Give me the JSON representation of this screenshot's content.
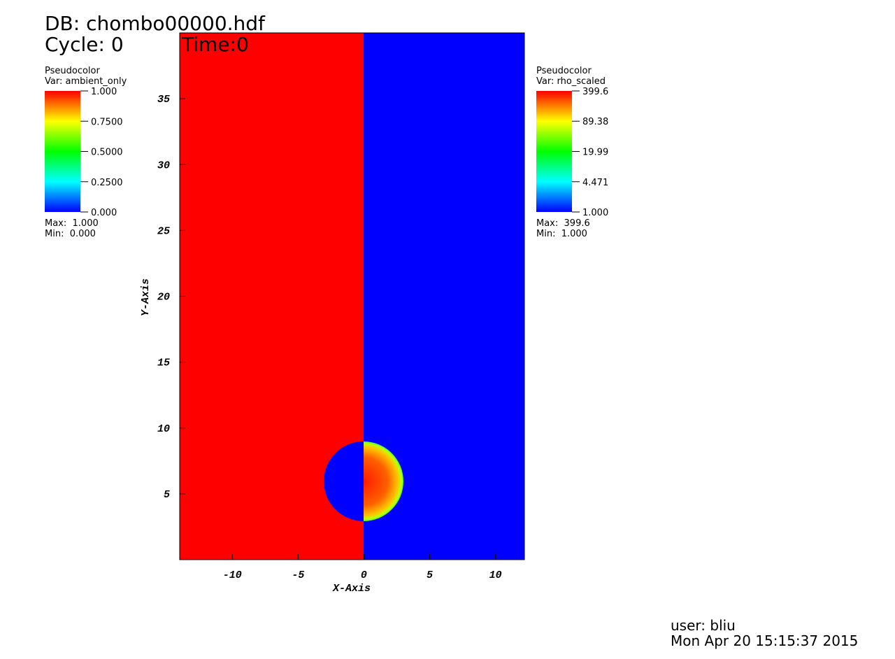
{
  "header": {
    "db": "DB: chombo00000.hdf",
    "cycle": "Cycle: 0",
    "time": "Time:0"
  },
  "chart_data": {
    "type": "pseudocolor",
    "xlabel": "X-Axis",
    "ylabel": "Y-Axis",
    "xlim": [
      -14,
      12.2
    ],
    "ylim": [
      0,
      40
    ],
    "xticks": [
      -10,
      -5,
      0,
      5,
      10
    ],
    "yticks": [
      5,
      10,
      15,
      20,
      25,
      30,
      35
    ]
  },
  "legends": [
    {
      "title": "Pseudocolor",
      "var": "Var: ambient_only",
      "log": false,
      "ticks": [
        {
          "value": 1,
          "label": "1.000"
        },
        {
          "value": 0.75,
          "label": "0.7500"
        },
        {
          "value": 0.5,
          "label": "0.5000"
        },
        {
          "value": 0.25,
          "label": "0.2500"
        },
        {
          "value": 0,
          "label": "0.000"
        }
      ],
      "max": "Max:  1.000",
      "min": "Min:  0.000"
    },
    {
      "title": "Pseudocolor",
      "var": "Var: rho_scaled",
      "log": true,
      "ticks": [
        399.6,
        89.38,
        19.99,
        4.471,
        {
          "value": 1,
          "label": "1.000"
        }
      ],
      "max": "Max:  399.6",
      "min": "Min:  1.000"
    }
  ],
  "footer": {
    "user": "user: bliu",
    "date": "Mon Apr 20 15:15:37 2015"
  }
}
